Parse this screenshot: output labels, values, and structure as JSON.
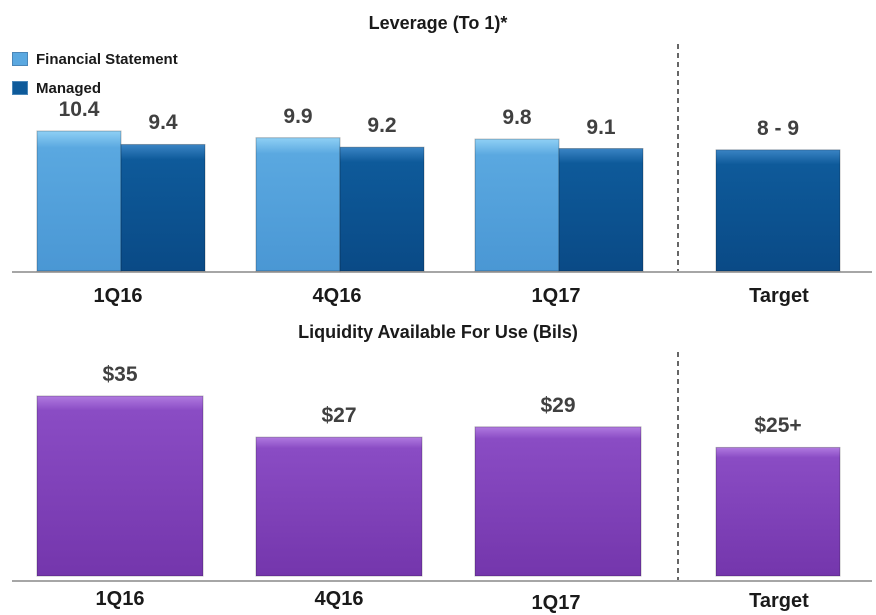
{
  "colors": {
    "financial_statement": "#5aa8e0",
    "managed": "#0e5a9a",
    "liquidity": "#7a3fb0",
    "axis": "#888888",
    "divider": "#000000"
  },
  "chart_data": [
    {
      "type": "bar",
      "title": "Leverage (To 1)*",
      "categories": [
        "1Q16",
        "4Q16",
        "1Q17",
        "Target"
      ],
      "series": [
        {
          "name": "Financial Statement",
          "values": [
            10.4,
            9.9,
            9.8,
            null
          ],
          "labels": [
            "10.4",
            "9.9",
            "9.8",
            ""
          ]
        },
        {
          "name": "Managed",
          "values": [
            9.4,
            9.2,
            9.1,
            9.0
          ],
          "labels": [
            "9.4",
            "9.2",
            "9.1",
            "8 - 9"
          ]
        }
      ],
      "ylim": [
        0,
        10.4
      ],
      "legend": "top-left",
      "grid": false
    },
    {
      "type": "bar",
      "title": "Liquidity Available For Use (Bils)",
      "categories": [
        "1Q16",
        "4Q16",
        "1Q17",
        "Target"
      ],
      "series": [
        {
          "values": [
            35,
            27,
            29,
            25
          ],
          "labels": [
            "$35",
            "$27",
            "$29",
            "$25+"
          ]
        }
      ],
      "ylim": [
        0,
        35
      ],
      "grid": false
    }
  ]
}
